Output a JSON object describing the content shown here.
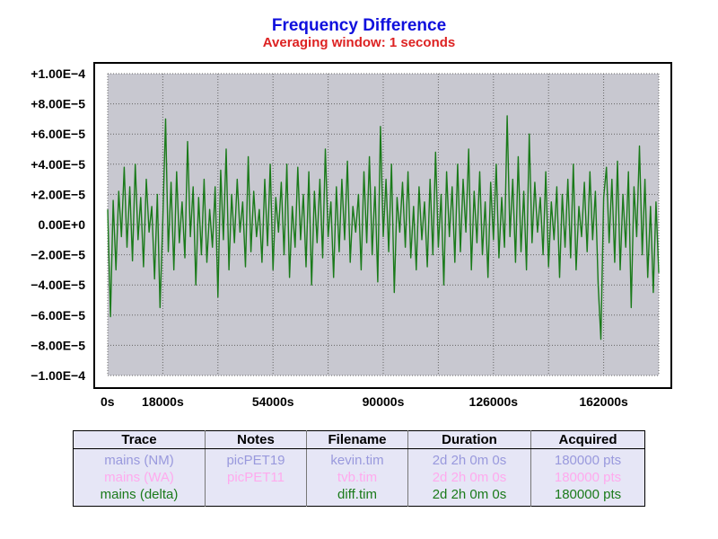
{
  "chart_data": {
    "type": "line",
    "title": "Frequency Difference",
    "subtitle": "Averaging window: 1 seconds",
    "xlabel": "",
    "ylabel": "",
    "xlim": [
      0,
      180000
    ],
    "ylim": [
      -0.0001,
      0.0001
    ],
    "x_ticks": [
      {
        "value": 0,
        "label": "0s"
      },
      {
        "value": 18000,
        "label": "18000s"
      },
      {
        "value": 54000,
        "label": "54000s"
      },
      {
        "value": 90000,
        "label": "90000s"
      },
      {
        "value": 126000,
        "label": "126000s"
      },
      {
        "value": 162000,
        "label": "162000s"
      }
    ],
    "x_grid": [
      0,
      18000,
      36000,
      54000,
      72000,
      90000,
      108000,
      126000,
      144000,
      162000,
      180000
    ],
    "y_ticks": [
      {
        "value": 0.0001,
        "label": "+1.00E−4"
      },
      {
        "value": 8e-05,
        "label": "+8.00E−5"
      },
      {
        "value": 6e-05,
        "label": "+6.00E−5"
      },
      {
        "value": 4e-05,
        "label": "+4.00E−5"
      },
      {
        "value": 2e-05,
        "label": "+2.00E−5"
      },
      {
        "value": 0,
        "label": "0.00E+0",
        "zero": true
      },
      {
        "value": -2e-05,
        "label": "−2.00E−5"
      },
      {
        "value": -4e-05,
        "label": "−4.00E−5"
      },
      {
        "value": -6e-05,
        "label": "−6.00E−5"
      },
      {
        "value": -8e-05,
        "label": "−8.00E−5"
      },
      {
        "value": -0.0001,
        "label": "−1.00E−4"
      }
    ],
    "grid": true,
    "series": [
      {
        "name": "mains (delta)",
        "color": "#1a7a1a",
        "points": [
          [
            0,
            1e-05
          ],
          [
            900,
            -6.1e-05
          ],
          [
            1800,
            1.6e-05
          ],
          [
            2700,
            -3e-05
          ],
          [
            3600,
            2.2e-05
          ],
          [
            4500,
            -8e-06
          ],
          [
            5400,
            3.8e-05
          ],
          [
            6300,
            -1.5e-05
          ],
          [
            7200,
            2.5e-05
          ],
          [
            8100,
            -2.4e-05
          ],
          [
            9000,
            4e-05
          ],
          [
            9900,
            -1e-05
          ],
          [
            10800,
            1.8e-05
          ],
          [
            11700,
            -2.8e-05
          ],
          [
            12600,
            3e-05
          ],
          [
            13500,
            -5e-06
          ],
          [
            14400,
            1.2e-05
          ],
          [
            15300,
            -3.6e-05
          ],
          [
            16200,
            2e-05
          ],
          [
            17100,
            -5.5e-05
          ],
          [
            18000,
            3e-06
          ],
          [
            18900,
            7e-05
          ],
          [
            19800,
            -1.8e-05
          ],
          [
            20700,
            2.8e-05
          ],
          [
            21600,
            -3e-05
          ],
          [
            22500,
            3.5e-05
          ],
          [
            23400,
            -1.2e-05
          ],
          [
            24300,
            1.5e-05
          ],
          [
            25200,
            -2.2e-05
          ],
          [
            26100,
            5.5e-05
          ],
          [
            27000,
            -8e-06
          ],
          [
            27900,
            2.5e-05
          ],
          [
            28800,
            -4e-05
          ],
          [
            29700,
            1.8e-05
          ],
          [
            30600,
            -2e-05
          ],
          [
            31500,
            3e-05
          ],
          [
            32400,
            -2.5e-05
          ],
          [
            33300,
            1e-05
          ],
          [
            34200,
            -1.5e-05
          ],
          [
            35100,
            2.5e-05
          ],
          [
            36000,
            -4.8e-05
          ],
          [
            36900,
            3.6e-05
          ],
          [
            37800,
            -1e-05
          ],
          [
            38700,
            5e-05
          ],
          [
            39600,
            -3e-05
          ],
          [
            40500,
            2e-05
          ],
          [
            41400,
            -1.2e-05
          ],
          [
            42300,
            3e-05
          ],
          [
            43200,
            -5e-06
          ],
          [
            44100,
            1.5e-05
          ],
          [
            45000,
            -2.8e-05
          ],
          [
            45900,
            4.5e-05
          ],
          [
            46800,
            -1.8e-05
          ],
          [
            47700,
            2.2e-05
          ],
          [
            48600,
            -8e-06
          ],
          [
            49500,
            1e-05
          ],
          [
            50400,
            -2.5e-05
          ],
          [
            51300,
            3e-05
          ],
          [
            52200,
            -1.4e-05
          ],
          [
            53100,
            4e-05
          ],
          [
            54000,
            -3e-05
          ],
          [
            54900,
            1.8e-05
          ],
          [
            55800,
            -5e-06
          ],
          [
            56700,
            2.8e-05
          ],
          [
            57600,
            -2e-05
          ],
          [
            58500,
            4e-05
          ],
          [
            59400,
            -3.5e-05
          ],
          [
            60300,
            1.2e-05
          ],
          [
            61200,
            -1.5e-05
          ],
          [
            62100,
            3.8e-05
          ],
          [
            63000,
            -1e-05
          ],
          [
            63900,
            2e-05
          ],
          [
            64800,
            -2.8e-05
          ],
          [
            65700,
            3.5e-05
          ],
          [
            66600,
            -4e-05
          ],
          [
            67500,
            2.2e-05
          ],
          [
            68400,
            -1.2e-05
          ],
          [
            69300,
            3e-05
          ],
          [
            70200,
            -2.2e-05
          ],
          [
            71100,
            5e-05
          ],
          [
            72000,
            -8e-06
          ],
          [
            72900,
            1.5e-05
          ],
          [
            73800,
            -3.5e-05
          ],
          [
            74700,
            2.5e-05
          ],
          [
            75600,
            -1.8e-05
          ],
          [
            76500,
            3e-05
          ],
          [
            77400,
            -1e-05
          ],
          [
            78300,
            4.2e-05
          ],
          [
            79200,
            -2.5e-05
          ],
          [
            80100,
            1.2e-05
          ],
          [
            81000,
            -5e-06
          ],
          [
            81900,
            2e-05
          ],
          [
            82800,
            -3e-05
          ],
          [
            83700,
            3.5e-05
          ],
          [
            84600,
            -1.2e-05
          ],
          [
            85500,
            4.5e-05
          ],
          [
            86400,
            -2e-05
          ],
          [
            87300,
            2.5e-05
          ],
          [
            88200,
            -3.8e-05
          ],
          [
            89100,
            6.5e-05
          ],
          [
            90000,
            -8e-06
          ],
          [
            90900,
            3e-05
          ],
          [
            91800,
            -1.8e-05
          ],
          [
            92700,
            4e-05
          ],
          [
            93600,
            -4.5e-05
          ],
          [
            94500,
            1.8e-05
          ],
          [
            95400,
            -5e-06
          ],
          [
            96300,
            2.8e-05
          ],
          [
            97200,
            -1.5e-05
          ],
          [
            98100,
            3.5e-05
          ],
          [
            99000,
            -2.2e-05
          ],
          [
            99900,
            1.2e-05
          ],
          [
            100800,
            -3e-05
          ],
          [
            101700,
            2.5e-05
          ],
          [
            102600,
            -1e-05
          ],
          [
            103500,
            1.5e-05
          ],
          [
            104400,
            -2.8e-05
          ],
          [
            105300,
            3e-05
          ],
          [
            106200,
            -2e-05
          ],
          [
            107100,
            4.8e-05
          ],
          [
            108000,
            -1.5e-05
          ],
          [
            108900,
            2e-05
          ],
          [
            109800,
            -4e-05
          ],
          [
            110700,
            3.5e-05
          ],
          [
            111600,
            -8e-06
          ],
          [
            112500,
            2.5e-05
          ],
          [
            113400,
            -2.5e-05
          ],
          [
            114300,
            4e-05
          ],
          [
            115200,
            -1.8e-05
          ],
          [
            116100,
            3e-05
          ],
          [
            117000,
            -5e-06
          ],
          [
            117900,
            5e-05
          ],
          [
            118800,
            -3e-05
          ],
          [
            119700,
            2.2e-05
          ],
          [
            120600,
            -1.2e-05
          ],
          [
            121500,
            3.5e-05
          ],
          [
            122400,
            -2e-05
          ],
          [
            123300,
            1.5e-05
          ],
          [
            124200,
            -3.5e-05
          ],
          [
            125100,
            2.8e-05
          ],
          [
            126000,
            -1e-05
          ],
          [
            126900,
            4e-05
          ],
          [
            127800,
            -2.2e-05
          ],
          [
            128700,
            1.8e-05
          ],
          [
            129600,
            -1.5e-05
          ],
          [
            130500,
            7.2e-05
          ],
          [
            131400,
            -8e-06
          ],
          [
            132300,
            3e-05
          ],
          [
            133200,
            -2.5e-05
          ],
          [
            134100,
            4.5e-05
          ],
          [
            135000,
            -1.8e-05
          ],
          [
            135900,
            2.2e-05
          ],
          [
            136800,
            -3e-05
          ],
          [
            137700,
            6e-05
          ],
          [
            138600,
            -1.2e-05
          ],
          [
            139500,
            2.8e-05
          ],
          [
            140400,
            -5e-06
          ],
          [
            141300,
            1.8e-05
          ],
          [
            142200,
            -2e-05
          ],
          [
            143100,
            3.5e-05
          ],
          [
            144000,
            -2.8e-05
          ],
          [
            144900,
            1.5e-05
          ],
          [
            145800,
            -1e-05
          ],
          [
            146700,
            2.5e-05
          ],
          [
            147600,
            -3.5e-05
          ],
          [
            148500,
            2e-05
          ],
          [
            149400,
            -1.5e-05
          ],
          [
            150300,
            3e-05
          ],
          [
            151200,
            -2.2e-05
          ],
          [
            152100,
            4e-05
          ],
          [
            153000,
            -3e-05
          ],
          [
            153900,
            1.2e-05
          ],
          [
            154800,
            -8e-06
          ],
          [
            155700,
            2.8e-05
          ],
          [
            156600,
            -1.8e-05
          ],
          [
            157500,
            3.5e-05
          ],
          [
            158400,
            -1e-05
          ],
          [
            159300,
            2.2e-05
          ],
          [
            160200,
            -4e-05
          ],
          [
            161100,
            -7.6e-05
          ],
          [
            162000,
            1.8e-05
          ],
          [
            162900,
            3.8e-05
          ],
          [
            163800,
            -1.2e-05
          ],
          [
            164700,
            3e-05
          ],
          [
            165600,
            -2.5e-05
          ],
          [
            166500,
            4.2e-05
          ],
          [
            167400,
            -3e-05
          ],
          [
            168300,
            2e-05
          ],
          [
            169200,
            -1.5e-05
          ],
          [
            170100,
            3.5e-05
          ],
          [
            171000,
            -5.5e-05
          ],
          [
            171900,
            2.5e-05
          ],
          [
            172800,
            -8e-06
          ],
          [
            173700,
            5.2e-05
          ],
          [
            174600,
            -2e-05
          ],
          [
            175500,
            3e-05
          ],
          [
            176400,
            -3.5e-05
          ],
          [
            177300,
            1.2e-05
          ],
          [
            178200,
            -4.5e-05
          ],
          [
            179100,
            1.5e-05
          ],
          [
            180000,
            -3.2e-05
          ]
        ]
      }
    ]
  },
  "legend_table": {
    "headers": [
      "Trace",
      "Notes",
      "Filename",
      "Duration",
      "Acquired"
    ],
    "rows": [
      {
        "color": "#9999dd",
        "cells": [
          "mains (NM)",
          "picPET19",
          "kevin.tim",
          "2d 2h 0m 0s",
          "180000 pts"
        ]
      },
      {
        "color": "#ffaaee",
        "cells": [
          "mains (WA)",
          "picPET11",
          "tvb.tim",
          "2d 2h 0m 0s",
          "180000 pts"
        ]
      },
      {
        "color": "#1a7a1a",
        "cells": [
          "mains (delta)",
          "",
          "diff.tim",
          "2d 2h 0m 0s",
          "180000 pts"
        ]
      }
    ]
  }
}
